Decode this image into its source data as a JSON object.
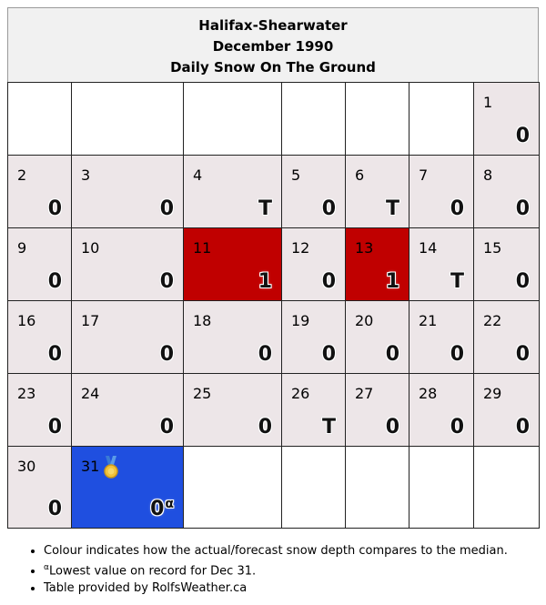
{
  "header": {
    "station": "Halifax-Shearwater",
    "period": "December 1990",
    "subtitle": "Daily Snow On The Ground"
  },
  "colors": {
    "typical": "#ede6e8",
    "above_median": "#c00000",
    "record_low": "#1f4fe0",
    "empty": "#ffffff"
  },
  "weeks": [
    [
      null,
      null,
      null,
      null,
      null,
      null,
      {
        "day": "1",
        "value": "0",
        "status": "typical"
      }
    ],
    [
      {
        "day": "2",
        "value": "0",
        "status": "typical"
      },
      {
        "day": "3",
        "value": "0",
        "status": "typical"
      },
      {
        "day": "4",
        "value": "T",
        "status": "typical"
      },
      {
        "day": "5",
        "value": "0",
        "status": "typical"
      },
      {
        "day": "6",
        "value": "T",
        "status": "typical"
      },
      {
        "day": "7",
        "value": "0",
        "status": "typical"
      },
      {
        "day": "8",
        "value": "0",
        "status": "typical"
      }
    ],
    [
      {
        "day": "9",
        "value": "0",
        "status": "typical"
      },
      {
        "day": "10",
        "value": "0",
        "status": "typical"
      },
      {
        "day": "11",
        "value": "1",
        "status": "above"
      },
      {
        "day": "12",
        "value": "0",
        "status": "typical"
      },
      {
        "day": "13",
        "value": "1",
        "status": "above"
      },
      {
        "day": "14",
        "value": "T",
        "status": "typical"
      },
      {
        "day": "15",
        "value": "0",
        "status": "typical"
      }
    ],
    [
      {
        "day": "16",
        "value": "0",
        "status": "typical"
      },
      {
        "day": "17",
        "value": "0",
        "status": "typical"
      },
      {
        "day": "18",
        "value": "0",
        "status": "typical"
      },
      {
        "day": "19",
        "value": "0",
        "status": "typical"
      },
      {
        "day": "20",
        "value": "0",
        "status": "typical"
      },
      {
        "day": "21",
        "value": "0",
        "status": "typical"
      },
      {
        "day": "22",
        "value": "0",
        "status": "typical"
      }
    ],
    [
      {
        "day": "23",
        "value": "0",
        "status": "typical"
      },
      {
        "day": "24",
        "value": "0",
        "status": "typical"
      },
      {
        "day": "25",
        "value": "0",
        "status": "typical"
      },
      {
        "day": "26",
        "value": "T",
        "status": "typical"
      },
      {
        "day": "27",
        "value": "0",
        "status": "typical"
      },
      {
        "day": "28",
        "value": "0",
        "status": "typical"
      },
      {
        "day": "29",
        "value": "0",
        "status": "typical"
      }
    ],
    [
      {
        "day": "30",
        "value": "0",
        "status": "typical"
      },
      {
        "day": "31",
        "value": "0",
        "status": "record",
        "marker": "α",
        "icon": "medal-icon"
      },
      null,
      null,
      null,
      null,
      null
    ]
  ],
  "notes": {
    "colour_note": "Colour indicates how the actual/forecast snow depth compares to the median.",
    "record_marker": "α",
    "record_note": "Lowest value on record for Dec 31.",
    "credit": "Table provided by RolfsWeather.ca"
  }
}
